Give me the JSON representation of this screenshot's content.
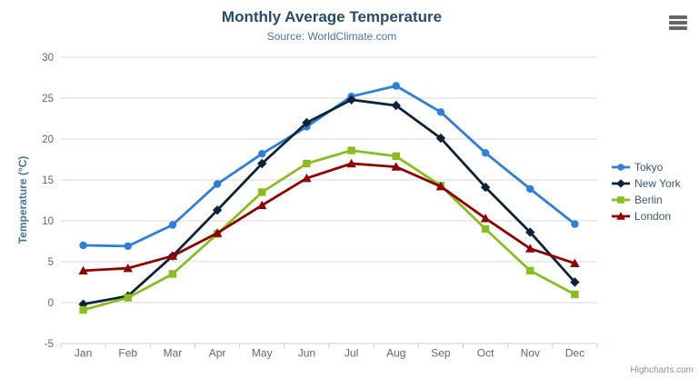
{
  "header": {
    "export_menu_icon": "hamburger-icon"
  },
  "credits": "Highcharts.com",
  "chart_data": {
    "type": "line",
    "title": "Monthly Average Temperature",
    "subtitle": "Source: WorldClimate.com",
    "xlabel": "",
    "ylabel": "Temperature (°C)",
    "categories": [
      "Jan",
      "Feb",
      "Mar",
      "Apr",
      "May",
      "Jun",
      "Jul",
      "Aug",
      "Sep",
      "Oct",
      "Nov",
      "Dec"
    ],
    "yticks": [
      -5,
      0,
      5,
      10,
      15,
      20,
      25,
      30
    ],
    "ylim": [
      -5,
      30
    ],
    "grid": true,
    "legend_position": "right",
    "series": [
      {
        "name": "Tokyo",
        "color": "#2f7ed8",
        "marker": "circle",
        "values": [
          7.0,
          6.9,
          9.5,
          14.5,
          18.2,
          21.5,
          25.2,
          26.5,
          23.3,
          18.3,
          13.9,
          9.6
        ]
      },
      {
        "name": "New York",
        "color": "#0d233a",
        "marker": "diamond",
        "values": [
          -0.2,
          0.8,
          5.7,
          11.3,
          17.0,
          22.0,
          24.8,
          24.1,
          20.1,
          14.1,
          8.6,
          2.5
        ]
      },
      {
        "name": "Berlin",
        "color": "#8bbc21",
        "marker": "square",
        "values": [
          -0.9,
          0.6,
          3.5,
          8.4,
          13.5,
          17.0,
          18.6,
          17.9,
          14.3,
          9.0,
          3.9,
          1.0
        ]
      },
      {
        "name": "London",
        "color": "#910000",
        "marker": "triangle-up",
        "values": [
          3.9,
          4.2,
          5.7,
          8.5,
          11.9,
          15.2,
          17.0,
          16.6,
          14.2,
          10.3,
          6.6,
          4.8
        ]
      }
    ],
    "style_colors": {
      "grid_line": "#d8d8d8",
      "axis_line": "#c0d0e0",
      "tick_label": "#666666",
      "axis_title": "#4572a7",
      "title": "#274b6d",
      "subtitle": "#4d759e",
      "legend_text": "#3e576f",
      "credits_text": "#909090"
    }
  }
}
